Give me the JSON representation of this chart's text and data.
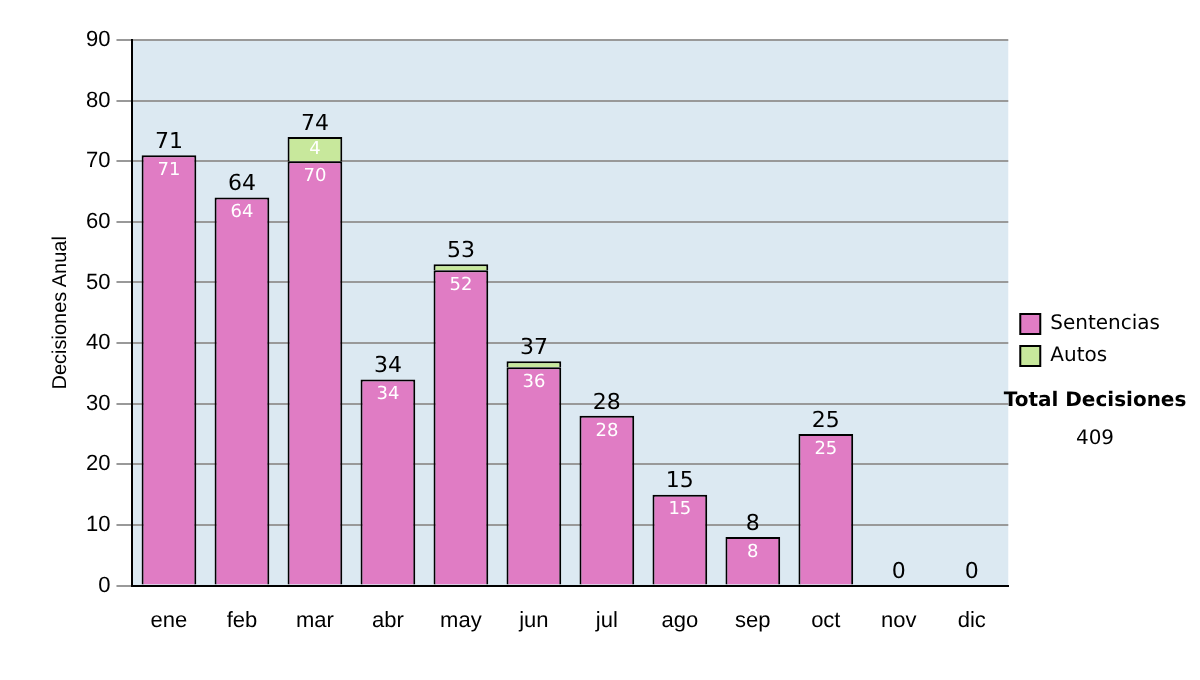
{
  "chart_data": {
    "type": "bar",
    "stacked": true,
    "ylabel": "Decisiones Anual",
    "categories": [
      "ene",
      "feb",
      "mar",
      "abr",
      "may",
      "jun",
      "jul",
      "ago",
      "sep",
      "oct",
      "nov",
      "dic"
    ],
    "series": [
      {
        "name": "Sentencias",
        "color": "#e07cc4",
        "values": [
          71,
          64,
          70,
          34,
          52,
          36,
          28,
          15,
          8,
          25,
          0,
          0
        ],
        "value_labels": [
          "71",
          "64",
          "70",
          "34",
          "52",
          "36",
          "28",
          "15",
          "8",
          "25",
          null,
          null
        ]
      },
      {
        "name": "Autos",
        "color": "#c8e89c",
        "values": [
          0,
          0,
          4,
          0,
          1,
          1,
          0,
          0,
          0,
          0,
          0,
          0
        ],
        "value_labels": [
          null,
          null,
          "4",
          null,
          null,
          null,
          null,
          null,
          null,
          null,
          null,
          null
        ]
      }
    ],
    "totals": [
      "71",
      "64",
      "74",
      "34",
      "53",
      "37",
      "28",
      "15",
      "8",
      "25",
      "0",
      "0"
    ],
    "ylim": [
      0,
      90
    ],
    "yticks": [
      0,
      10,
      20,
      30,
      40,
      50,
      60,
      70,
      80,
      90
    ],
    "grid": "y",
    "legend": "right",
    "annotations": [
      "Total Decisiones",
      "409"
    ]
  }
}
